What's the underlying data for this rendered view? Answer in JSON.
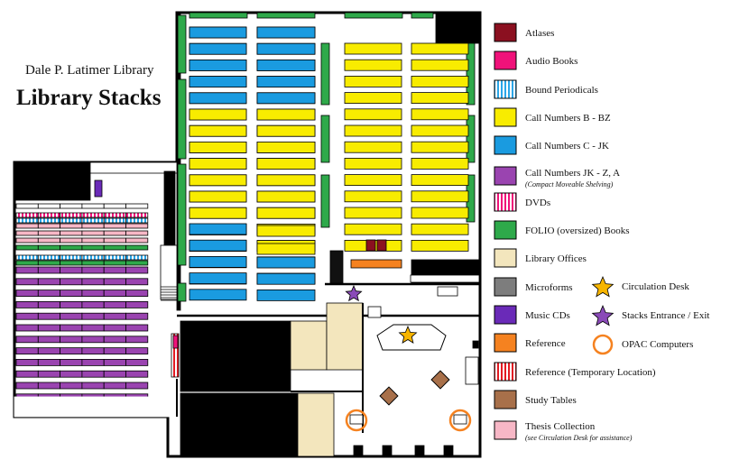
{
  "header": {
    "subtitle": "Dale P. Latimer Library",
    "title": "Library Stacks"
  },
  "colors": {
    "atlases": "#8b1020",
    "audio_books": "#f0127a",
    "bound_periodicals": "#2aa6e8",
    "call_b_bz": "#f8ec00",
    "call_c_jk": "#1a9be0",
    "call_jk_z": "#9a44b0",
    "dvds": "#f0127a",
    "folio": "#2ea94a",
    "library_offices": "#f3e6bd",
    "microforms": "#7d7d7d",
    "music_cds": "#6a2ab8",
    "reference": "#f58220",
    "reference_temp": "#e31b23",
    "study_tables": "#a8704a",
    "thesis": "#f7b7c6",
    "circulation_star": "#f7b500",
    "entrance_star": "#8a4ab8",
    "opac_ring": "#f58220"
  },
  "legend": [
    {
      "key": "atlases",
      "label": "Atlases",
      "sub": "",
      "icon": "atlases-swatch"
    },
    {
      "key": "audio_books",
      "label": "Audio Books",
      "sub": "",
      "icon": "audio-books-swatch"
    },
    {
      "key": "bound_periodicals",
      "label": "Bound Periodicals",
      "sub": "",
      "icon": "bound-periodicals-swatch"
    },
    {
      "key": "call_b_bz",
      "label": "Call Numbers B - BZ",
      "sub": "",
      "icon": "call-numbers-b-bz-swatch"
    },
    {
      "key": "call_c_jk",
      "label": "Call Numbers C - JK",
      "sub": "",
      "icon": "call-numbers-c-jk-swatch"
    },
    {
      "key": "call_jk_z",
      "label": "Call Numbers JK - Z, A",
      "sub": "(Compact Moveable Shelving)",
      "icon": "call-numbers-jk-z-swatch"
    },
    {
      "key": "dvds",
      "label": "DVDs",
      "sub": "",
      "icon": "dvds-swatch"
    },
    {
      "key": "folio",
      "label": "FOLIO (oversized) Books",
      "sub": "",
      "icon": "folio-swatch"
    },
    {
      "key": "library_offices",
      "label": "Library Offices",
      "sub": "",
      "icon": "library-offices-swatch"
    },
    {
      "key": "microforms",
      "label": "Microforms",
      "sub": "",
      "icon": "microforms-swatch"
    },
    {
      "key": "music_cds",
      "label": "Music CDs",
      "sub": "",
      "icon": "music-cds-swatch"
    },
    {
      "key": "reference",
      "label": "Reference",
      "sub": "",
      "icon": "reference-swatch"
    },
    {
      "key": "reference_temp",
      "label": "Reference (Temporary Location)",
      "sub": "",
      "icon": "reference-temp-swatch"
    },
    {
      "key": "study_tables",
      "label": "Study Tables",
      "sub": "",
      "icon": "study-tables-swatch"
    },
    {
      "key": "thesis",
      "label": "Thesis Collection",
      "sub": "(see Circulation Desk for assistance)",
      "icon": "thesis-swatch"
    }
  ],
  "legend_symbols": [
    {
      "label": "Circulation Desk",
      "icon": "gold-star-icon"
    },
    {
      "label": "Stacks Entrance / Exit",
      "icon": "purple-star-icon"
    },
    {
      "label": "OPAC Computers",
      "icon": "orange-ring-icon"
    }
  ]
}
